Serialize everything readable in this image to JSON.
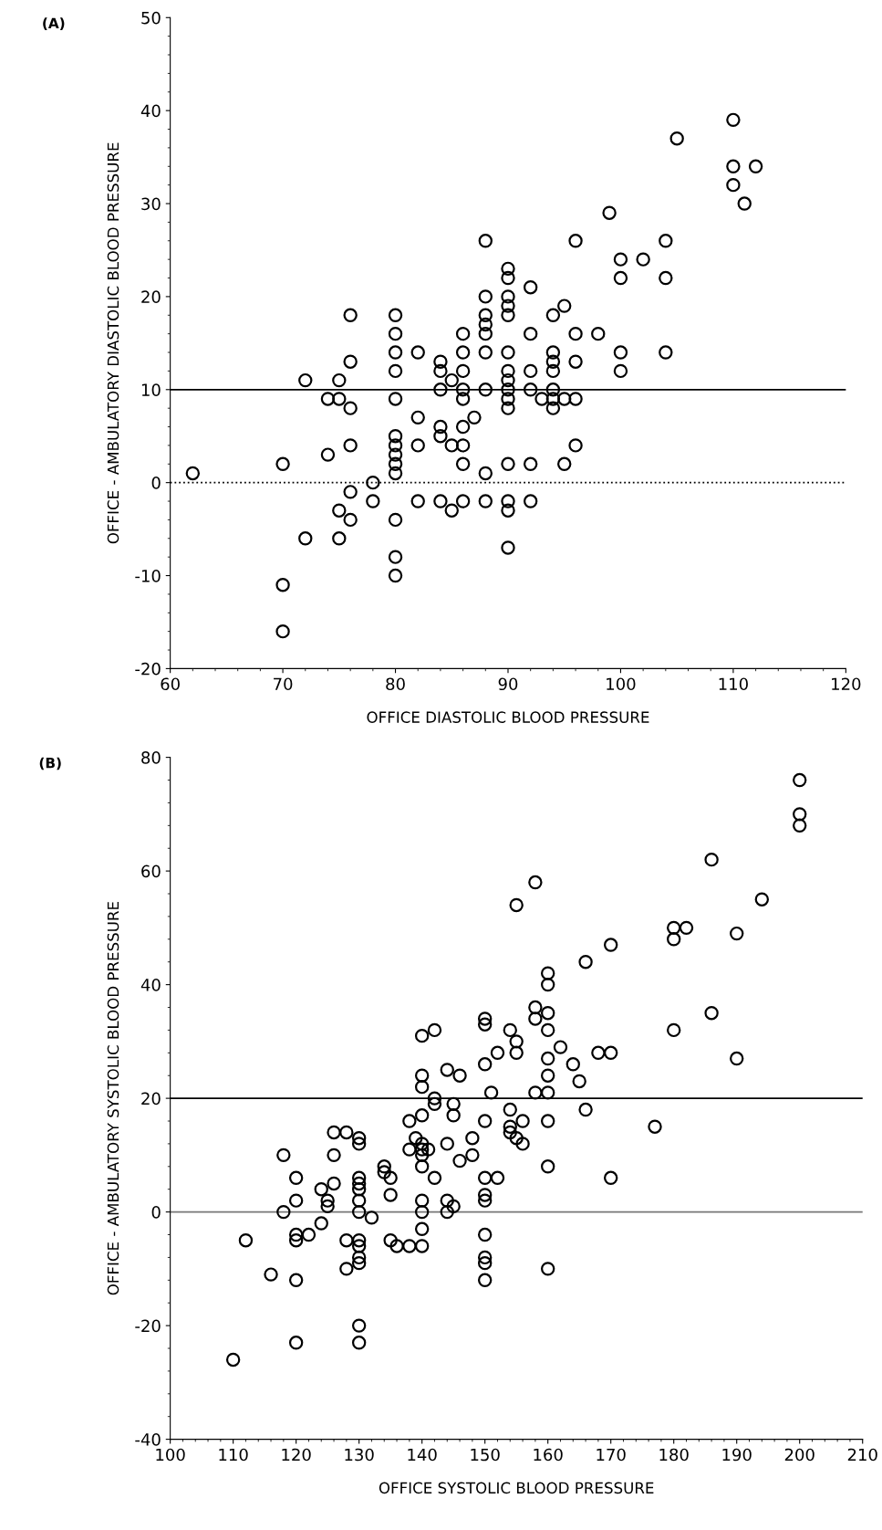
{
  "chart_data": [
    {
      "type": "scatter",
      "title": "(A)",
      "xlabel": "OFFICE DIASTOLIC BLOOD PRESSURE",
      "ylabel": "OFFICE - AMBULATORY DIASTOLIC BLOOD PRESSURE",
      "xlim": [
        60,
        120
      ],
      "ylim": [
        -20,
        50
      ],
      "xticks": [
        60,
        70,
        80,
        90,
        100,
        110,
        120
      ],
      "yticks": [
        -20,
        -10,
        0,
        10,
        20,
        30,
        40,
        50
      ],
      "marker": "circle",
      "grid": false,
      "legend": false,
      "ref_lines": [
        {
          "axis": "y",
          "value": 10,
          "color": "#000000",
          "line_style": "solid"
        },
        {
          "axis": "y",
          "value": 0,
          "color": "#000000",
          "line_style": "dotted"
        }
      ],
      "series": [
        {
          "color": "#000000",
          "x": [
            62,
            70,
            70,
            70,
            72,
            72,
            74,
            74,
            75,
            75,
            75,
            75,
            76,
            76,
            76,
            76,
            76,
            76,
            78,
            78,
            80,
            80,
            80,
            80,
            80,
            80,
            80,
            80,
            80,
            80,
            80,
            80,
            80,
            82,
            82,
            82,
            82,
            84,
            84,
            84,
            84,
            84,
            84,
            85,
            85,
            85,
            86,
            86,
            86,
            86,
            86,
            86,
            86,
            86,
            86,
            87,
            88,
            88,
            88,
            88,
            88,
            88,
            88,
            88,
            88,
            90,
            90,
            90,
            90,
            90,
            90,
            90,
            90,
            90,
            90,
            90,
            90,
            90,
            90,
            90,
            92,
            92,
            92,
            92,
            92,
            92,
            93,
            94,
            94,
            94,
            94,
            94,
            94,
            94,
            95,
            95,
            95,
            96,
            96,
            96,
            96,
            96,
            98,
            99,
            100,
            100,
            100,
            100,
            102,
            104,
            104,
            104,
            105,
            110,
            110,
            110,
            111,
            112
          ],
          "values": [
            1,
            2,
            -11,
            -16,
            11,
            -6,
            9,
            3,
            9,
            11,
            -3,
            -6,
            18,
            13,
            8,
            4,
            -1,
            -4,
            0,
            -2,
            18,
            16,
            14,
            12,
            9,
            5,
            4,
            3,
            2,
            1,
            -4,
            -8,
            -10,
            14,
            7,
            4,
            -2,
            13,
            12,
            10,
            6,
            5,
            -2,
            11,
            4,
            -3,
            16,
            14,
            12,
            10,
            9,
            6,
            4,
            2,
            -2,
            7,
            26,
            20,
            18,
            17,
            16,
            14,
            10,
            1,
            -2,
            23,
            22,
            20,
            19,
            18,
            14,
            12,
            11,
            10,
            9,
            8,
            2,
            -2,
            -3,
            -7,
            21,
            16,
            12,
            10,
            2,
            -2,
            9,
            18,
            14,
            13,
            12,
            10,
            9,
            8,
            19,
            9,
            2,
            26,
            16,
            13,
            9,
            4,
            16,
            29,
            24,
            22,
            14,
            12,
            24,
            26,
            22,
            14,
            37,
            39,
            34,
            32,
            30,
            34
          ]
        }
      ]
    },
    {
      "type": "scatter",
      "title": "(B)",
      "xlabel": "OFFICE SYSTOLIC BLOOD PRESSURE",
      "ylabel": "OFFICE - AMBULATORY SYSTOLIC BLOOD PRESSURE",
      "xlim": [
        100,
        210
      ],
      "ylim": [
        -40,
        80
      ],
      "xticks": [
        100,
        110,
        120,
        130,
        140,
        150,
        160,
        170,
        180,
        190,
        200,
        210
      ],
      "yticks": [
        -40,
        -20,
        0,
        20,
        40,
        60,
        80
      ],
      "marker": "circle",
      "grid": false,
      "legend": false,
      "ref_lines": [
        {
          "axis": "y",
          "value": 20,
          "color": "#000000",
          "line_style": "solid"
        },
        {
          "axis": "y",
          "value": 0,
          "color": "#777777",
          "line_style": "solid"
        }
      ],
      "series": [
        {
          "color": "#000000",
          "x": [
            110,
            112,
            116,
            118,
            118,
            120,
            120,
            120,
            120,
            120,
            120,
            122,
            124,
            124,
            125,
            125,
            126,
            126,
            126,
            128,
            128,
            128,
            130,
            130,
            130,
            130,
            130,
            130,
            130,
            130,
            130,
            130,
            130,
            130,
            130,
            132,
            134,
            134,
            135,
            135,
            135,
            136,
            138,
            138,
            138,
            139,
            140,
            140,
            140,
            140,
            140,
            140,
            140,
            140,
            140,
            140,
            140,
            140,
            141,
            142,
            142,
            142,
            142,
            144,
            144,
            144,
            144,
            145,
            145,
            145,
            146,
            146,
            148,
            148,
            150,
            150,
            150,
            150,
            150,
            150,
            150,
            150,
            150,
            150,
            150,
            151,
            152,
            152,
            154,
            154,
            154,
            154,
            155,
            155,
            155,
            155,
            156,
            156,
            158,
            158,
            158,
            158,
            160,
            160,
            160,
            160,
            160,
            160,
            160,
            160,
            160,
            160,
            162,
            164,
            165,
            166,
            166,
            168,
            170,
            170,
            170,
            177,
            180,
            180,
            180,
            182,
            186,
            186,
            190,
            190,
            194,
            200,
            200,
            200
          ],
          "values": [
            -26,
            -5,
            -11,
            10,
            0,
            6,
            2,
            -4,
            -5,
            -12,
            -23,
            -4,
            4,
            -2,
            2,
            1,
            14,
            10,
            5,
            14,
            -5,
            -10,
            13,
            12,
            6,
            5,
            4,
            2,
            0,
            -5,
            -6,
            -8,
            -9,
            -20,
            -23,
            -1,
            8,
            7,
            6,
            3,
            -5,
            -6,
            16,
            11,
            -6,
            13,
            31,
            24,
            22,
            17,
            12,
            11,
            10,
            8,
            2,
            0,
            -3,
            -6,
            11,
            32,
            20,
            19,
            6,
            25,
            12,
            2,
            0,
            19,
            17,
            1,
            24,
            9,
            10,
            13,
            34,
            33,
            26,
            16,
            6,
            3,
            2,
            -4,
            -8,
            -9,
            -12,
            21,
            28,
            6,
            32,
            18,
            15,
            14,
            54,
            30,
            28,
            13,
            16,
            12,
            58,
            36,
            34,
            21,
            42,
            40,
            35,
            32,
            27,
            24,
            21,
            16,
            8,
            -10,
            29,
            26,
            23,
            44,
            18,
            28,
            47,
            28,
            6,
            15,
            50,
            48,
            32,
            50,
            62,
            35,
            49,
            27,
            55,
            76,
            70,
            68
          ]
        }
      ]
    }
  ]
}
